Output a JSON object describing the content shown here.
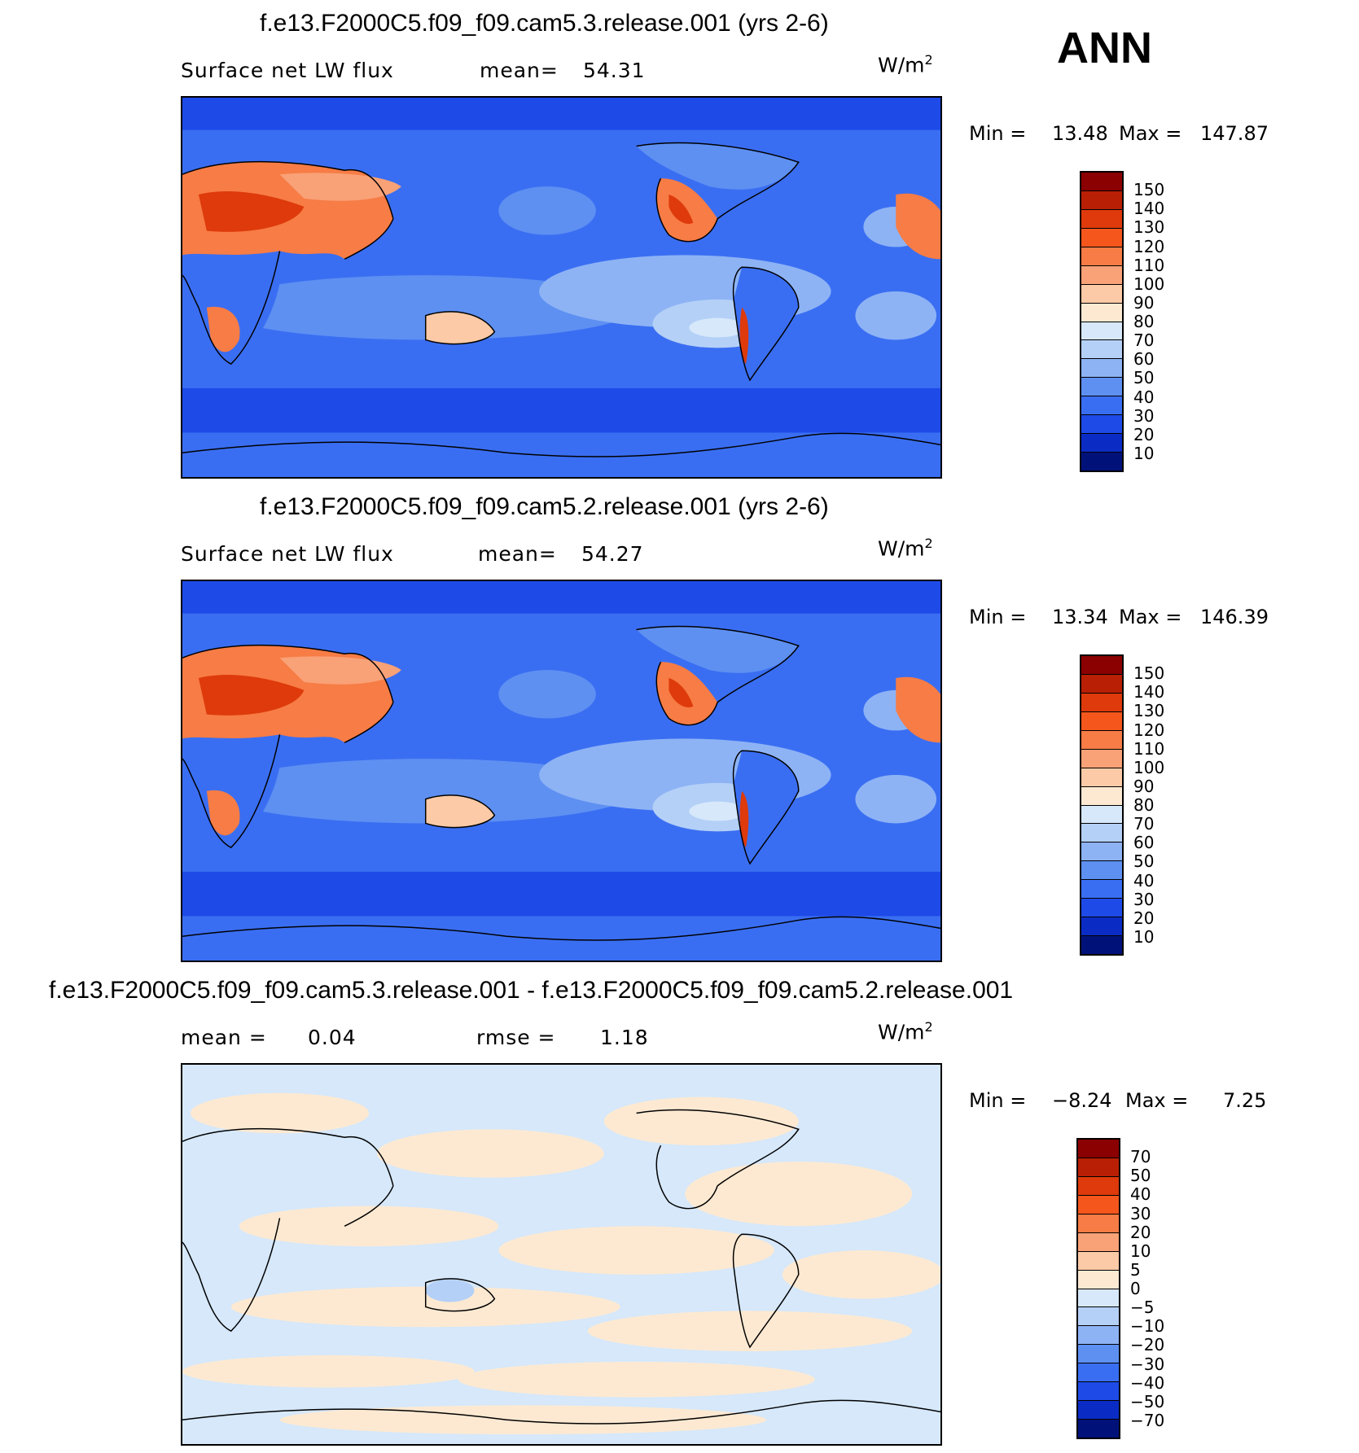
{
  "season": "ANN",
  "panels": [
    {
      "title": "f.e13.F2000C5.f09_f09.cam5.3.release.001 (yrs 2-6)",
      "variable": "Surface net LW flux",
      "stat1_label": "mean=",
      "stat1_value": "54.31",
      "stat2_label": "",
      "stat2_value": "",
      "units_base": "W/m",
      "units_exp": "2",
      "min_label": "Min =",
      "min_value": "13.48",
      "max_label": "Max =",
      "max_value": "147.87",
      "colorbar": {
        "labels": [
          "150",
          "140",
          "130",
          "120",
          "110",
          "100",
          "90",
          "80",
          "70",
          "60",
          "50",
          "40",
          "30",
          "20",
          "10"
        ],
        "colors": [
          "#8b0000",
          "#b81f05",
          "#de3a0b",
          "#f4561c",
          "#f77c45",
          "#f9a177",
          "#fccaa6",
          "#fde9d2",
          "#d6e8fa",
          "#b4d0f7",
          "#8db3f5",
          "#5e90f2",
          "#3a6ef2",
          "#1e4ae8",
          "#0b2cc4",
          "#00127a"
        ]
      }
    },
    {
      "title": "f.e13.F2000C5.f09_f09.cam5.2.release.001 (yrs 2-6)",
      "variable": "Surface net LW flux",
      "stat1_label": "mean=",
      "stat1_value": "54.27",
      "stat2_label": "",
      "stat2_value": "",
      "units_base": "W/m",
      "units_exp": "2",
      "min_label": "Min =",
      "min_value": "13.34",
      "max_label": "Max =",
      "max_value": "146.39",
      "colorbar": {
        "labels": [
          "150",
          "140",
          "130",
          "120",
          "110",
          "100",
          "90",
          "80",
          "70",
          "60",
          "50",
          "40",
          "30",
          "20",
          "10"
        ],
        "colors": [
          "#8b0000",
          "#b81f05",
          "#de3a0b",
          "#f4561c",
          "#f77c45",
          "#f9a177",
          "#fccaa6",
          "#fde9d2",
          "#d6e8fa",
          "#b4d0f7",
          "#8db3f5",
          "#5e90f2",
          "#3a6ef2",
          "#1e4ae8",
          "#0b2cc4",
          "#00127a"
        ]
      }
    },
    {
      "title": "f.e13.F2000C5.f09_f09.cam5.3.release.001 - f.e13.F2000C5.f09_f09.cam5.2.release.001",
      "variable": "",
      "stat1_label": "mean =",
      "stat1_value": "0.04",
      "stat2_label": "rmse =",
      "stat2_value": "1.18",
      "units_base": "W/m",
      "units_exp": "2",
      "min_label": "Min =",
      "min_value": "−8.24",
      "max_label": "Max =",
      "max_value": "7.25",
      "colorbar": {
        "labels": [
          "70",
          "50",
          "40",
          "30",
          "20",
          "10",
          "5",
          "0",
          "−5",
          "−10",
          "−20",
          "−30",
          "−40",
          "−50",
          "−70"
        ],
        "colors": [
          "#8b0000",
          "#b81f05",
          "#de3a0b",
          "#f4561c",
          "#f77c45",
          "#f9a177",
          "#fccaa6",
          "#fde9d2",
          "#d6e8fa",
          "#b4d0f7",
          "#8db3f5",
          "#5e90f2",
          "#3a6ef2",
          "#1e4ae8",
          "#0b2cc4",
          "#00127a"
        ]
      }
    }
  ]
}
